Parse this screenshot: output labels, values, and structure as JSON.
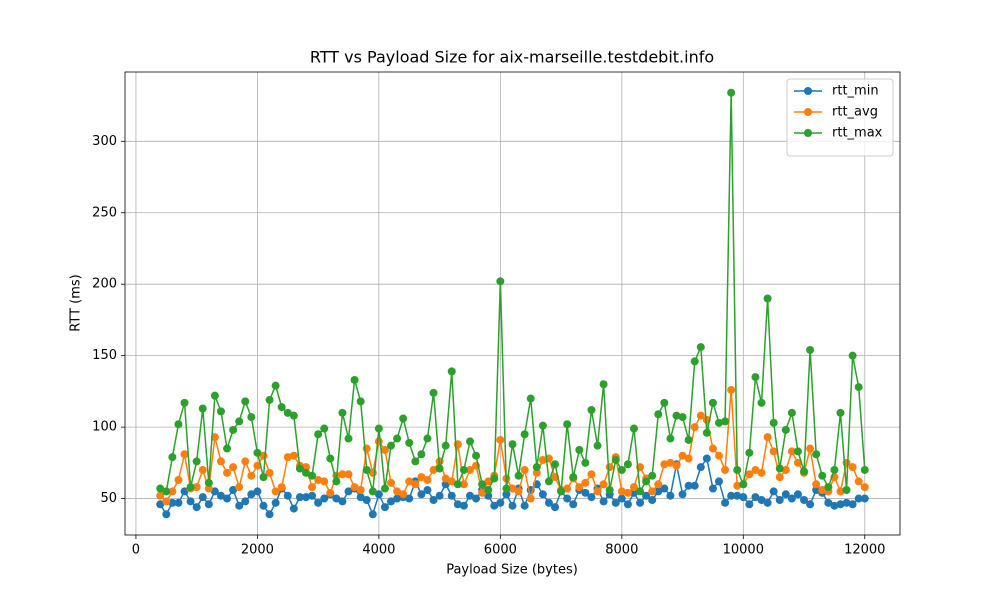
{
  "chart_data": {
    "type": "line",
    "title": "RTT vs Payload Size for aix-marseille.testdebit.info",
    "x_label": "Payload Size (bytes)",
    "y_label": "RTT (ms)",
    "x": [
      400,
      500,
      600,
      700,
      800,
      900,
      1000,
      1100,
      1200,
      1300,
      1400,
      1500,
      1600,
      1700,
      1800,
      1900,
      2000,
      2100,
      2200,
      2300,
      2400,
      2500,
      2600,
      2700,
      2800,
      2900,
      3000,
      3100,
      3200,
      3300,
      3400,
      3500,
      3600,
      3700,
      3800,
      3900,
      4000,
      4100,
      4200,
      4300,
      4400,
      4500,
      4600,
      4700,
      4800,
      4900,
      5000,
      5100,
      5200,
      5300,
      5400,
      5500,
      5600,
      5700,
      5800,
      5900,
      6000,
      6100,
      6200,
      6300,
      6400,
      6500,
      6600,
      6700,
      6800,
      6900,
      7000,
      7100,
      7200,
      7300,
      7400,
      7500,
      7600,
      7700,
      7800,
      7900,
      8000,
      8100,
      8200,
      8300,
      8400,
      8500,
      8600,
      8700,
      8800,
      8900,
      9000,
      9100,
      9200,
      9300,
      9400,
      9500,
      9600,
      9700,
      9800,
      9900,
      10000,
      10100,
      10200,
      10300,
      10400,
      10500,
      10600,
      10700,
      10800,
      10900,
      11000,
      11100,
      11200,
      11300,
      11400,
      11500,
      11600,
      11700,
      11800,
      11900,
      12000
    ],
    "series": [
      {
        "name": "rtt_min",
        "color": "#1f77b4",
        "values": [
          46,
          39,
          47,
          47,
          55,
          48,
          44,
          51,
          46,
          55,
          52,
          50,
          56,
          45,
          48,
          53,
          55,
          45,
          39,
          47,
          57,
          52,
          43,
          51,
          51,
          52,
          47,
          50,
          53,
          50,
          48,
          55,
          57,
          51,
          49,
          39,
          53,
          44,
          48,
          50,
          51,
          50,
          62,
          53,
          56,
          49,
          52,
          60,
          52,
          46,
          45,
          52,
          50,
          56,
          52,
          45,
          47,
          53,
          45,
          57,
          45,
          56,
          60,
          53,
          47,
          44,
          55,
          50,
          46,
          56,
          54,
          51,
          57,
          48,
          53,
          47,
          50,
          46,
          54,
          47,
          52,
          49,
          55,
          57,
          52,
          74,
          53,
          59,
          59,
          72,
          78,
          57,
          62,
          47,
          52,
          52,
          51,
          46,
          51,
          49,
          47,
          55,
          49,
          53,
          50,
          53,
          49,
          46,
          56,
          54,
          47,
          45,
          46,
          47,
          46,
          50,
          50
        ]
      },
      {
        "name": "rtt_avg",
        "color": "#ff7f0e",
        "values": [
          52,
          48,
          55,
          63,
          81,
          57,
          58,
          70,
          57,
          93,
          76,
          68,
          72,
          58,
          76,
          66,
          73,
          80,
          68,
          55,
          58,
          79,
          80,
          73,
          72,
          58,
          63,
          62,
          54,
          66,
          67,
          67,
          58,
          56,
          85,
          68,
          90,
          84,
          61,
          55,
          53,
          62,
          60,
          65,
          63,
          70,
          76,
          64,
          62,
          88,
          60,
          70,
          73,
          54,
          62,
          66,
          91,
          64,
          57,
          55,
          70,
          50,
          68,
          77,
          78,
          65,
          56,
          57,
          64,
          58,
          61,
          67,
          55,
          60,
          72,
          79,
          55,
          54,
          58,
          72,
          64,
          55,
          60,
          74,
          75,
          73,
          80,
          78,
          100,
          108,
          105,
          85,
          80,
          70,
          126,
          59,
          60,
          67,
          70,
          68,
          93,
          83,
          65,
          70,
          83,
          75,
          68,
          85,
          60,
          56,
          55,
          65,
          55,
          75,
          72,
          62,
          58
        ]
      },
      {
        "name": "rtt_max",
        "color": "#2ca02c",
        "values": [
          57,
          55,
          79,
          102,
          117,
          58,
          76,
          113,
          61,
          122,
          111,
          85,
          98,
          104,
          118,
          107,
          82,
          65,
          119,
          129,
          114,
          110,
          108,
          71,
          68,
          66,
          95,
          99,
          78,
          62,
          110,
          92,
          133,
          118,
          70,
          55,
          99,
          57,
          87,
          92,
          106,
          89,
          76,
          81,
          92,
          124,
          71,
          87,
          139,
          60,
          70,
          90,
          80,
          60,
          56,
          64,
          202,
          57,
          88,
          66,
          95,
          120,
          72,
          101,
          62,
          74,
          55,
          102,
          65,
          84,
          75,
          112,
          87,
          130,
          56,
          77,
          70,
          74,
          99,
          55,
          62,
          66,
          109,
          117,
          92,
          108,
          107,
          91,
          146,
          156,
          96,
          117,
          103,
          104,
          334,
          70,
          60,
          82,
          135,
          117,
          190,
          103,
          71,
          98,
          110,
          83,
          69,
          154,
          81,
          66,
          58,
          70,
          110,
          56,
          150,
          128,
          70
        ]
      }
    ],
    "xlim": [
      -180,
      12580
    ],
    "ylim": [
      24.5,
      348.5
    ],
    "xticks": [
      0,
      2000,
      4000,
      6000,
      8000,
      10000,
      12000
    ],
    "yticks": [
      50,
      100,
      150,
      200,
      250,
      300
    ],
    "grid": true,
    "legend": "upper right"
  }
}
